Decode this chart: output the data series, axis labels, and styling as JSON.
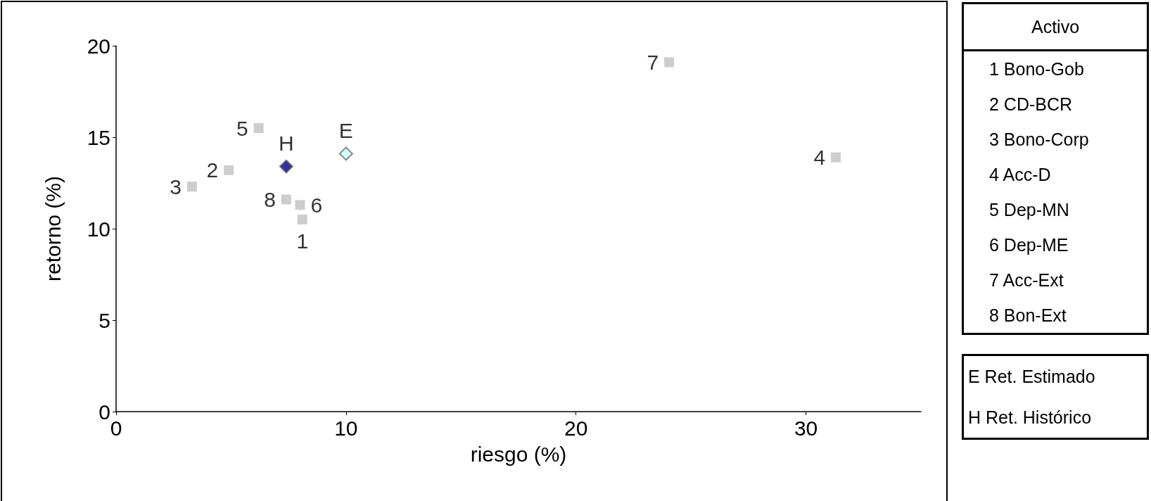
{
  "chart_data": {
    "type": "scatter",
    "xlabel": "riesgo (%)",
    "ylabel": "retorno (%)",
    "xlim": [
      0,
      35
    ],
    "xticks": [
      0,
      10,
      20,
      30
    ],
    "ylim": [
      0,
      20
    ],
    "yticks": [
      0,
      5,
      10,
      15,
      20
    ],
    "grid": false,
    "legend_title": "Activo",
    "annotations": [
      "1 Bono-Gob",
      "2 CD-BCR",
      "3 Bono-Corp",
      "4 Acc-D",
      "5 Dep-MN",
      "6 Dep-ME",
      "7 Acc-Ext",
      "8 Bon-Ext",
      "E Ret. Estimado",
      "H Ret. Histórico"
    ],
    "series": [
      {
        "name": "1",
        "marker": "square",
        "color": "#c0c0c0",
        "x": [
          8.1
        ],
        "values": [
          10.5
        ]
      },
      {
        "name": "2",
        "marker": "square",
        "color": "#c0c0c0",
        "x": [
          4.9
        ],
        "values": [
          13.2
        ]
      },
      {
        "name": "3",
        "marker": "square",
        "color": "#c0c0c0",
        "x": [
          3.3
        ],
        "values": [
          12.3
        ]
      },
      {
        "name": "4",
        "marker": "square",
        "color": "#c0c0c0",
        "x": [
          31.3
        ],
        "values": [
          13.9
        ]
      },
      {
        "name": "5",
        "marker": "square",
        "color": "#c0c0c0",
        "x": [
          6.2
        ],
        "values": [
          15.5
        ]
      },
      {
        "name": "6",
        "marker": "square",
        "color": "#c0c0c0",
        "x": [
          8.0
        ],
        "values": [
          11.3
        ]
      },
      {
        "name": "7",
        "marker": "square",
        "color": "#c0c0c0",
        "x": [
          24.05
        ],
        "values": [
          19.1
        ]
      },
      {
        "name": "8",
        "marker": "square",
        "color": "#c0c0c0",
        "x": [
          7.4
        ],
        "values": [
          11.6
        ]
      },
      {
        "name": "H",
        "marker": "diamond",
        "color": "#000080",
        "x": [
          7.4
        ],
        "values": [
          13.4
        ]
      },
      {
        "name": "E",
        "marker": "diamond",
        "color": "#ccffff",
        "x": [
          10.0
        ],
        "values": [
          14.1
        ]
      }
    ]
  }
}
